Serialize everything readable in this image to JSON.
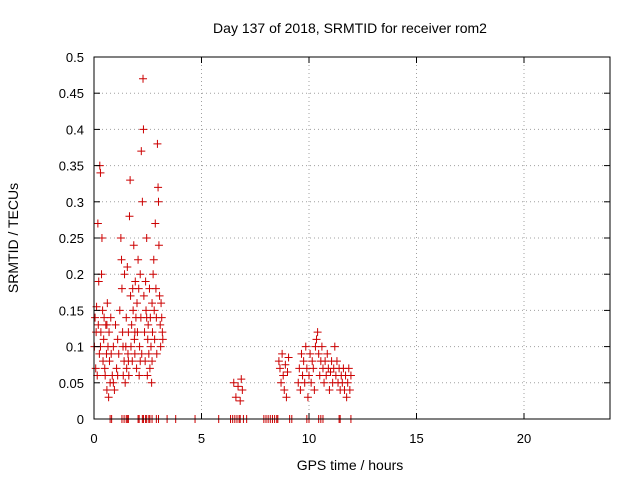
{
  "chart_data": {
    "type": "scatter",
    "title": "Day 137 of 2018, SRMTID for receiver rom2",
    "xlabel": "GPS time / hours",
    "ylabel": "SRMTID / TECUs",
    "xlim": [
      0,
      24
    ],
    "ylim": [
      0,
      0.5
    ],
    "xticks": [
      0,
      5,
      10,
      15,
      20
    ],
    "xtick_labels": [
      "0",
      "5",
      "10",
      "15",
      "20"
    ],
    "yticks": [
      0,
      0.05,
      0.1,
      0.15,
      0.2,
      0.25,
      0.3,
      0.35,
      0.4,
      0.45,
      0.5
    ],
    "ytick_labels": [
      "0",
      "0.05",
      "0.1",
      "0.15",
      "0.2",
      "0.25",
      "0.3",
      "0.35",
      "0.4",
      "0.45",
      "0.5"
    ],
    "grid": true,
    "marker": "+",
    "color": "#cc0000",
    "series": [
      {
        "name": "SRMTID",
        "points": [
          [
            0.02,
            0.1
          ],
          [
            0.05,
            0.14
          ],
          [
            0.08,
            0.07
          ],
          [
            0.1,
            0.12
          ],
          [
            0.12,
            0.155
          ],
          [
            0.15,
            0.06
          ],
          [
            0.18,
            0.27
          ],
          [
            0.2,
            0.13
          ],
          [
            0.22,
            0.19
          ],
          [
            0.25,
            0.09
          ],
          [
            0.27,
            0.35
          ],
          [
            0.3,
            0.34
          ],
          [
            0.32,
            0.12
          ],
          [
            0.35,
            0.2
          ],
          [
            0.37,
            0.25
          ],
          [
            0.4,
            0.15
          ],
          [
            0.42,
            0.08
          ],
          [
            0.45,
            0.11
          ],
          [
            0.47,
            0.14
          ],
          [
            0.5,
            0.07
          ],
          [
            0.52,
            0.06
          ],
          [
            0.55,
            0.13
          ],
          [
            0.58,
            0.09
          ],
          [
            0.6,
            0.04
          ],
          [
            0.62,
            0.16
          ],
          [
            0.65,
            0.1
          ],
          [
            0.68,
            0.03
          ],
          [
            0.7,
            0.12
          ],
          [
            0.72,
            0.08
          ],
          [
            0.75,
            0.05
          ],
          [
            0.78,
            0.14
          ],
          [
            0.8,
            0.09
          ],
          [
            0.85,
            0.06
          ],
          [
            0.9,
            0.1
          ],
          [
            0.95,
            0.04
          ],
          [
            1.0,
            0.13
          ],
          [
            1.05,
            0.07
          ],
          [
            1.1,
            0.11
          ],
          [
            1.15,
            0.09
          ],
          [
            1.2,
            0.15
          ],
          [
            1.25,
            0.25
          ],
          [
            1.28,
            0.22
          ],
          [
            1.3,
            0.18
          ],
          [
            1.33,
            0.12
          ],
          [
            1.36,
            0.06
          ],
          [
            1.4,
            0.08
          ],
          [
            1.42,
            0.2
          ],
          [
            1.45,
            0.05
          ],
          [
            1.48,
            0.1
          ],
          [
            1.5,
            0.14
          ],
          [
            1.52,
            0.07
          ],
          [
            1.55,
            0.21
          ],
          [
            1.58,
            0.09
          ],
          [
            1.6,
            0.12
          ],
          [
            1.62,
            0.06
          ],
          [
            1.65,
            0.28
          ],
          [
            1.68,
            0.33
          ],
          [
            1.7,
            0.17
          ],
          [
            1.72,
            0.1
          ],
          [
            1.75,
            0.13
          ],
          [
            1.78,
            0.08
          ],
          [
            1.8,
            0.18
          ],
          [
            1.82,
            0.15
          ],
          [
            1.85,
            0.24
          ],
          [
            1.88,
            0.11
          ],
          [
            1.9,
            0.09
          ],
          [
            1.92,
            0.19
          ],
          [
            1.95,
            0.14
          ],
          [
            1.98,
            0.07
          ],
          [
            2.0,
            0.16
          ],
          [
            2.02,
            0.12
          ],
          [
            2.05,
            0.22
          ],
          [
            2.08,
            0.18
          ],
          [
            2.1,
            0.06
          ],
          [
            2.12,
            0.1
          ],
          [
            2.15,
            0.2
          ],
          [
            2.18,
            0.14
          ],
          [
            2.2,
            0.37
          ],
          [
            2.22,
            0.09
          ],
          [
            2.25,
            0.3
          ],
          [
            2.28,
            0.47
          ],
          [
            2.3,
            0.4
          ],
          [
            2.32,
            0.17
          ],
          [
            2.35,
            0.12
          ],
          [
            2.38,
            0.08
          ],
          [
            2.4,
            0.19
          ],
          [
            2.42,
            0.15
          ],
          [
            2.45,
            0.25
          ],
          [
            2.48,
            0.06
          ],
          [
            2.5,
            0.11
          ],
          [
            2.52,
            0.13
          ],
          [
            2.55,
            0.09
          ],
          [
            2.58,
            0.18
          ],
          [
            2.6,
            0.07
          ],
          [
            2.62,
            0.14
          ],
          [
            2.65,
            0.1
          ],
          [
            2.68,
            0.05
          ],
          [
            2.7,
            0.16
          ],
          [
            2.72,
            0.12
          ],
          [
            2.75,
            0.2
          ],
          [
            2.78,
            0.22
          ],
          [
            2.8,
            0.15
          ],
          [
            2.82,
            0.11
          ],
          [
            2.85,
            0.27
          ],
          [
            2.88,
            0.18
          ],
          [
            2.9,
            0.14
          ],
          [
            2.92,
            0.09
          ],
          [
            2.95,
            0.38
          ],
          [
            2.98,
            0.32
          ],
          [
            3.0,
            0.3
          ],
          [
            3.02,
            0.24
          ],
          [
            3.05,
            0.17
          ],
          [
            3.08,
            0.13
          ],
          [
            3.1,
            0.1
          ],
          [
            3.12,
            0.16
          ],
          [
            3.15,
            0.14
          ],
          [
            3.18,
            0.12
          ],
          [
            3.2,
            0.11
          ],
          [
            0.3,
            0.1
          ],
          [
            0.6,
            0.13
          ],
          [
            0.9,
            0.05
          ],
          [
            1.1,
            0.06
          ],
          [
            1.35,
            0.1
          ],
          [
            1.6,
            0.08
          ],
          [
            1.9,
            0.12
          ],
          [
            2.15,
            0.08
          ],
          [
            2.45,
            0.14
          ],
          [
            2.7,
            0.08
          ],
          [
            6.5,
            0.05
          ],
          [
            6.6,
            0.03
          ],
          [
            6.7,
            0.045
          ],
          [
            6.8,
            0.025
          ],
          [
            6.85,
            0.055
          ],
          [
            6.9,
            0.04
          ],
          [
            8.6,
            0.08
          ],
          [
            8.65,
            0.07
          ],
          [
            8.7,
            0.05
          ],
          [
            8.75,
            0.09
          ],
          [
            8.8,
            0.06
          ],
          [
            8.85,
            0.04
          ],
          [
            8.9,
            0.075
          ],
          [
            8.95,
            0.03
          ],
          [
            9.0,
            0.065
          ],
          [
            9.05,
            0.085
          ],
          [
            9.5,
            0.05
          ],
          [
            9.55,
            0.07
          ],
          [
            9.6,
            0.04
          ],
          [
            9.65,
            0.09
          ],
          [
            9.7,
            0.06
          ],
          [
            9.75,
            0.08
          ],
          [
            9.8,
            0.05
          ],
          [
            9.85,
            0.1
          ],
          [
            9.9,
            0.07
          ],
          [
            9.95,
            0.03
          ],
          [
            10.0,
            0.06
          ],
          [
            10.05,
            0.09
          ],
          [
            10.1,
            0.05
          ],
          [
            10.15,
            0.08
          ],
          [
            10.2,
            0.07
          ],
          [
            10.25,
            0.04
          ],
          [
            10.3,
            0.1
          ],
          [
            10.35,
            0.11
          ],
          [
            10.4,
            0.12
          ],
          [
            10.45,
            0.09
          ],
          [
            10.5,
            0.06
          ],
          [
            10.55,
            0.08
          ],
          [
            10.6,
            0.1
          ],
          [
            10.65,
            0.07
          ],
          [
            10.7,
            0.05
          ],
          [
            10.75,
            0.08
          ],
          [
            10.8,
            0.06
          ],
          [
            10.85,
            0.09
          ],
          [
            10.9,
            0.07
          ],
          [
            10.95,
            0.04
          ],
          [
            11.0,
            0.065
          ],
          [
            11.05,
            0.08
          ],
          [
            11.1,
            0.05
          ],
          [
            11.15,
            0.07
          ],
          [
            11.2,
            0.1
          ],
          [
            11.25,
            0.06
          ],
          [
            11.3,
            0.08
          ],
          [
            11.35,
            0.05
          ],
          [
            11.4,
            0.07
          ],
          [
            11.45,
            0.04
          ],
          [
            11.5,
            0.06
          ],
          [
            11.55,
            0.05
          ],
          [
            11.6,
            0.07
          ],
          [
            11.65,
            0.04
          ],
          [
            11.7,
            0.06
          ],
          [
            11.75,
            0.03
          ],
          [
            11.8,
            0.05
          ],
          [
            11.85,
            0.07
          ],
          [
            11.9,
            0.04
          ],
          [
            11.95,
            0.06
          ],
          [
            2.05,
            0
          ],
          [
            2.1,
            0
          ],
          [
            2.4,
            0
          ],
          [
            2.45,
            0
          ],
          [
            2.55,
            0
          ],
          [
            2.6,
            0
          ],
          [
            2.7,
            0
          ],
          [
            2.9,
            0
          ],
          [
            3.0,
            0
          ],
          [
            3.4,
            0
          ],
          [
            0.75,
            0
          ],
          [
            0.82,
            0
          ],
          [
            1.3,
            0
          ],
          [
            1.4,
            0
          ],
          [
            1.5,
            0
          ],
          [
            1.55,
            0
          ],
          [
            1.6,
            0
          ],
          [
            2.25,
            0
          ],
          [
            2.3,
            0
          ],
          [
            3.8,
            0
          ],
          [
            4.7,
            0
          ],
          [
            5.8,
            0
          ],
          [
            6.35,
            0
          ],
          [
            6.45,
            0
          ],
          [
            6.55,
            0
          ],
          [
            6.65,
            0
          ],
          [
            6.75,
            0
          ],
          [
            6.8,
            0
          ],
          [
            6.95,
            0
          ],
          [
            7.1,
            0
          ],
          [
            7.9,
            0
          ],
          [
            8.0,
            0
          ],
          [
            8.1,
            0
          ],
          [
            8.2,
            0
          ],
          [
            8.3,
            0
          ],
          [
            8.4,
            0
          ],
          [
            8.5,
            0
          ],
          [
            8.55,
            0
          ],
          [
            9.1,
            0
          ],
          [
            9.2,
            0
          ],
          [
            9.9,
            0
          ],
          [
            10.0,
            0
          ],
          [
            10.45,
            0
          ],
          [
            10.55,
            0
          ],
          [
            10.65,
            0
          ],
          [
            11.4,
            0
          ],
          [
            11.45,
            0
          ],
          [
            11.95,
            0
          ]
        ]
      }
    ]
  }
}
